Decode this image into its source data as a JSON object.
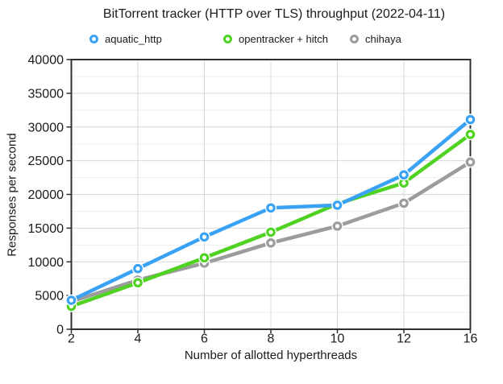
{
  "chart_data": {
    "type": "line",
    "title": "BitTorrent tracker (HTTP over TLS) throughput (2022-04-11)",
    "xlabel": "Number of allotted hyperthreads",
    "ylabel": "Responses per second",
    "categories": [
      "2",
      "4",
      "6",
      "8",
      "10",
      "12",
      "16"
    ],
    "series": [
      {
        "name": "aquatic_http",
        "color": "#3aa2f4",
        "values": [
          4300,
          9000,
          13700,
          18000,
          18400,
          22900,
          31100
        ]
      },
      {
        "name": "opentracker + hitch",
        "color": "#4fd221",
        "values": [
          3400,
          6900,
          10600,
          14400,
          18600,
          21700,
          28900
        ]
      },
      {
        "name": "chihaya",
        "color": "#9c9c9c",
        "values": [
          4100,
          7300,
          9800,
          12800,
          15300,
          18700,
          24800
        ]
      }
    ],
    "ylim": [
      0,
      40000
    ],
    "y_ticks": [
      "0",
      "5000",
      "10000",
      "15000",
      "20000",
      "25000",
      "30000",
      "35000",
      "40000"
    ],
    "y_major_step": 5000,
    "y_minor_step": 2500,
    "grid": true,
    "legend_position": "top",
    "marker_style": "ring",
    "colors": {
      "text": "#1b1b1b",
      "grid_major": "#d7d7d7",
      "grid_minor": "#ededed",
      "axis_border": "#2f2f2f",
      "background": "#ffffff"
    }
  }
}
